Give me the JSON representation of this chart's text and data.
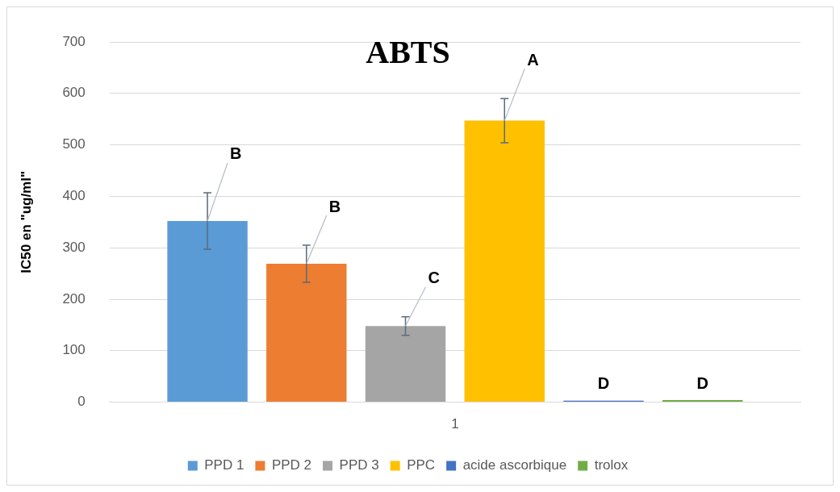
{
  "chart_data": {
    "type": "bar",
    "title": "ABTS",
    "ylabel": "IC50 en \"ug/ml\"",
    "categories": [
      "1"
    ],
    "series": [
      {
        "name": "PPD 1",
        "color": "#5b9bd5",
        "values": [
          352
        ],
        "errors": [
          55
        ]
      },
      {
        "name": "PPD 2",
        "color": "#ed7d31",
        "values": [
          269
        ],
        "errors": [
          36
        ]
      },
      {
        "name": "PPD 3",
        "color": "#a5a5a5",
        "values": [
          148
        ],
        "errors": [
          18
        ]
      },
      {
        "name": "PPC",
        "color": "#ffc000",
        "values": [
          547
        ],
        "errors": [
          43
        ]
      },
      {
        "name": "acide ascorbique",
        "color": "#4472c4",
        "values": [
          3
        ]
      },
      {
        "name": "trolox",
        "color": "#70ad47",
        "values": [
          4
        ]
      }
    ],
    "annotations": [
      "B",
      "B",
      "C",
      "A",
      "D",
      "D"
    ],
    "ylim": [
      0,
      700
    ],
    "yticks": [
      0,
      100,
      200,
      300,
      400,
      500,
      600,
      700
    ],
    "grid": "y",
    "legend": "bottom"
  }
}
